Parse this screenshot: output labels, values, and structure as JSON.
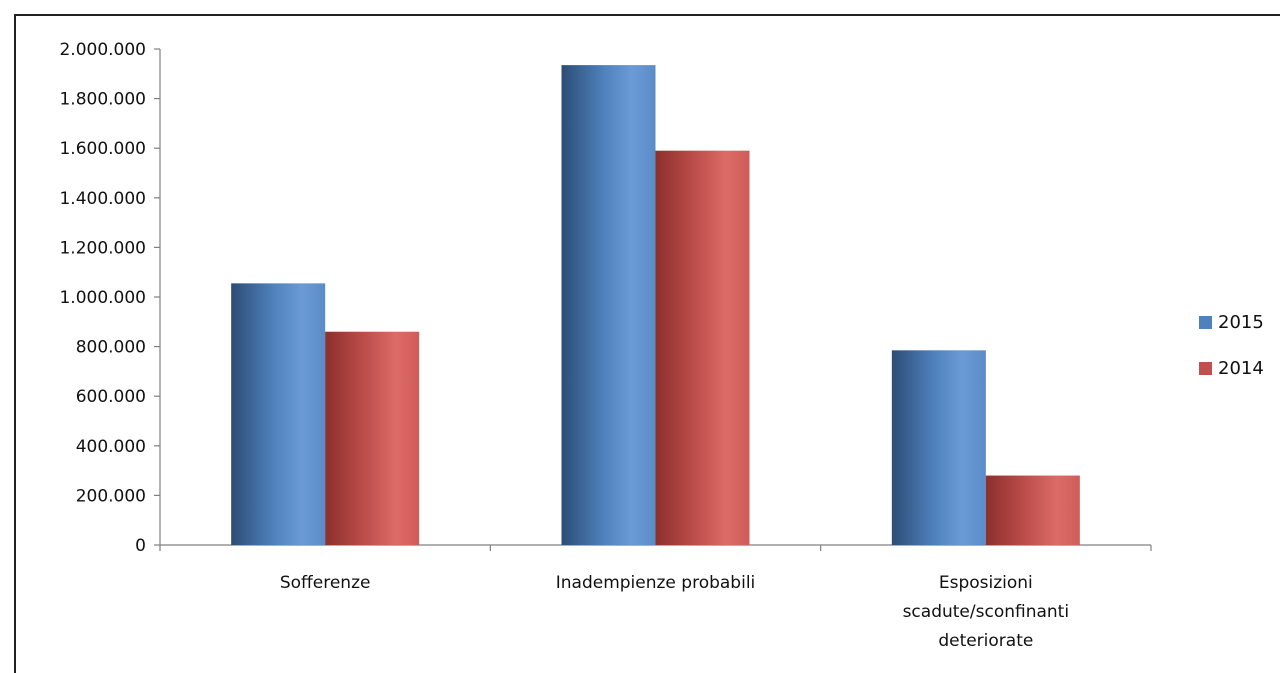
{
  "chart_data": {
    "type": "bar",
    "categories": [
      [
        "Sofferenze"
      ],
      [
        "Inadempienze probabili"
      ],
      [
        "Esposizioni",
        "scadute/sconfinanti",
        "deteriorate"
      ]
    ],
    "series": [
      {
        "name": "2015",
        "values": [
          1055000,
          1935000,
          785000
        ],
        "color": "#4f81bd"
      },
      {
        "name": "2014",
        "values": [
          860000,
          1590000,
          280000
        ],
        "color": "#c0504d"
      }
    ],
    "ylim": [
      0,
      2000000
    ],
    "yticks": [
      "0",
      "200.000",
      "400.000",
      "600.000",
      "800.000",
      "1.000.000",
      "1.200.000",
      "1.400.000",
      "1.600.000",
      "1.800.000",
      "2.000.000"
    ],
    "grid": false,
    "legend_position": "right"
  }
}
